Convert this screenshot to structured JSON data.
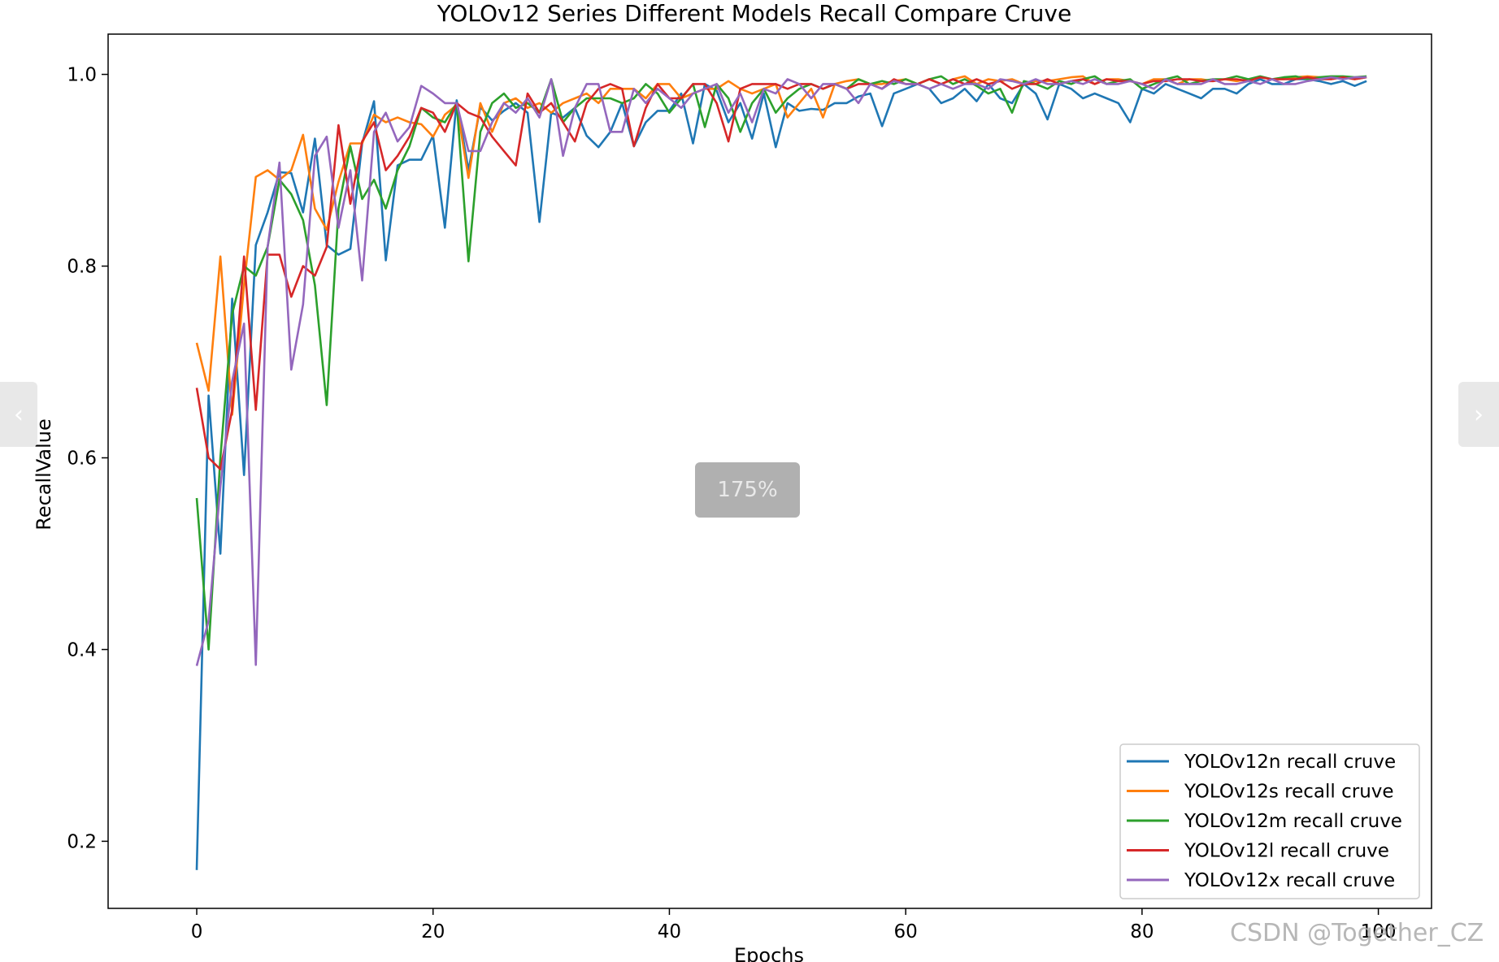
{
  "chart_data": {
    "type": "line",
    "title": "YOLOv12 Series Different Models Recall Compare Cruve",
    "xlabel": "Epochs",
    "ylabel": "RecallValue",
    "xlim": [
      -7.5,
      104.5
    ],
    "ylim": [
      0.13,
      1.042
    ],
    "xticks": [
      0,
      20,
      40,
      60,
      80,
      100
    ],
    "yticks": [
      0.2,
      0.4,
      0.6,
      0.8,
      1.0
    ],
    "grid": false,
    "legend_position": "bottom-right",
    "colors": [
      "#1f77b4",
      "#ff7f0e",
      "#2ca02c",
      "#d62728",
      "#9467bd"
    ],
    "series": [
      {
        "name": "YOLOv12n recall cruve",
        "values": [
          0.17,
          0.665,
          0.5,
          0.766,
          0.582,
          0.822,
          0.856,
          0.898,
          0.897,
          0.856,
          0.933,
          0.822,
          0.812,
          0.818,
          0.928,
          0.972,
          0.806,
          0.905,
          0.911,
          0.911,
          0.936,
          0.84,
          0.973,
          0.9,
          0.966,
          0.952,
          0.962,
          0.97,
          0.96,
          0.846,
          0.96,
          0.955,
          0.965,
          0.936,
          0.924,
          0.94,
          0.97,
          0.925,
          0.95,
          0.962,
          0.962,
          0.98,
          0.928,
          0.99,
          0.983,
          0.95,
          0.97,
          0.933,
          0.98,
          0.924,
          0.97,
          0.962,
          0.964,
          0.963,
          0.97,
          0.97,
          0.977,
          0.98,
          0.946,
          0.98,
          0.985,
          0.99,
          0.985,
          0.97,
          0.975,
          0.985,
          0.972,
          0.99,
          0.975,
          0.97,
          0.99,
          0.98,
          0.953,
          0.99,
          0.985,
          0.975,
          0.98,
          0.975,
          0.97,
          0.95,
          0.985,
          0.98,
          0.99,
          0.985,
          0.98,
          0.975,
          0.985,
          0.985,
          0.98,
          0.99,
          0.995,
          0.99,
          0.99,
          0.995,
          0.995,
          0.993,
          0.99,
          0.993,
          0.988,
          0.993
        ]
      },
      {
        "name": "YOLOv12s recall cruve",
        "values": [
          0.72,
          0.67,
          0.81,
          0.645,
          0.78,
          0.893,
          0.9,
          0.89,
          0.9,
          0.937,
          0.86,
          0.838,
          0.888,
          0.928,
          0.928,
          0.958,
          0.95,
          0.955,
          0.95,
          0.948,
          0.935,
          0.958,
          0.968,
          0.892,
          0.97,
          0.94,
          0.97,
          0.975,
          0.965,
          0.97,
          0.96,
          0.97,
          0.975,
          0.98,
          0.97,
          0.985,
          0.985,
          0.985,
          0.975,
          0.99,
          0.99,
          0.975,
          0.98,
          0.985,
          0.985,
          0.993,
          0.985,
          0.98,
          0.985,
          0.99,
          0.955,
          0.97,
          0.985,
          0.955,
          0.99,
          0.993,
          0.995,
          0.99,
          0.99,
          0.993,
          0.995,
          0.99,
          0.995,
          0.99,
          0.995,
          0.998,
          0.99,
          0.995,
          0.993,
          0.995,
          0.99,
          0.993,
          0.993,
          0.995,
          0.997,
          0.998,
          0.99,
          0.995,
          0.995,
          0.993,
          0.99,
          0.995,
          0.995,
          0.99,
          0.995,
          0.995,
          0.993,
          0.995,
          0.993,
          0.995,
          0.997,
          0.995,
          0.995,
          0.997,
          0.998,
          0.997,
          0.995,
          0.997,
          0.995,
          0.997
        ]
      },
      {
        "name": "YOLOv12m recall cruve",
        "values": [
          0.558,
          0.4,
          0.6,
          0.75,
          0.8,
          0.79,
          0.82,
          0.89,
          0.875,
          0.848,
          0.78,
          0.655,
          0.86,
          0.925,
          0.87,
          0.89,
          0.86,
          0.9,
          0.925,
          0.965,
          0.955,
          0.95,
          0.97,
          0.805,
          0.94,
          0.97,
          0.98,
          0.965,
          0.97,
          0.96,
          0.995,
          0.95,
          0.965,
          0.975,
          0.975,
          0.975,
          0.97,
          0.975,
          0.99,
          0.98,
          0.96,
          0.975,
          0.99,
          0.945,
          0.99,
          0.975,
          0.94,
          0.97,
          0.985,
          0.96,
          0.975,
          0.985,
          0.99,
          0.985,
          0.99,
          0.985,
          0.995,
          0.99,
          0.993,
          0.99,
          0.995,
          0.99,
          0.995,
          0.998,
          0.99,
          0.995,
          0.988,
          0.98,
          0.985,
          0.96,
          0.993,
          0.99,
          0.985,
          0.993,
          0.99,
          0.995,
          0.998,
          0.99,
          0.993,
          0.995,
          0.985,
          0.99,
          0.995,
          0.998,
          0.99,
          0.993,
          0.995,
          0.995,
          0.998,
          0.995,
          0.998,
          0.995,
          0.997,
          0.998,
          0.995,
          0.997,
          0.998,
          0.998,
          0.997,
          0.998
        ]
      },
      {
        "name": "YOLOv12l recall cruve",
        "values": [
          0.673,
          0.6,
          0.588,
          0.65,
          0.81,
          0.65,
          0.812,
          0.812,
          0.768,
          0.8,
          0.79,
          0.82,
          0.947,
          0.865,
          0.93,
          0.95,
          0.9,
          0.915,
          0.935,
          0.965,
          0.96,
          0.94,
          0.97,
          0.96,
          0.955,
          0.935,
          0.92,
          0.905,
          0.98,
          0.96,
          0.97,
          0.95,
          0.93,
          0.97,
          0.985,
          0.99,
          0.985,
          0.925,
          0.965,
          0.99,
          0.975,
          0.975,
          0.99,
          0.99,
          0.97,
          0.93,
          0.985,
          0.99,
          0.99,
          0.99,
          0.985,
          0.99,
          0.99,
          0.985,
          0.99,
          0.985,
          0.99,
          0.99,
          0.985,
          0.995,
          0.99,
          0.99,
          0.995,
          0.99,
          0.995,
          0.99,
          0.995,
          0.99,
          0.993,
          0.985,
          0.99,
          0.99,
          0.995,
          0.99,
          0.993,
          0.995,
          0.99,
          0.995,
          0.993,
          0.993,
          0.99,
          0.993,
          0.993,
          0.995,
          0.995,
          0.993,
          0.993,
          0.995,
          0.995,
          0.993,
          0.997,
          0.995,
          0.995,
          0.995,
          0.997,
          0.995,
          0.995,
          0.997,
          0.995,
          0.997
        ]
      },
      {
        "name": "YOLOv12x recall cruve",
        "values": [
          0.383,
          0.43,
          0.57,
          0.68,
          0.74,
          0.384,
          0.82,
          0.908,
          0.692,
          0.76,
          0.915,
          0.935,
          0.84,
          0.9,
          0.785,
          0.94,
          0.96,
          0.93,
          0.945,
          0.988,
          0.98,
          0.97,
          0.97,
          0.92,
          0.92,
          0.95,
          0.97,
          0.96,
          0.975,
          0.955,
          0.995,
          0.915,
          0.965,
          0.99,
          0.99,
          0.94,
          0.94,
          0.985,
          0.97,
          0.985,
          0.975,
          0.965,
          0.98,
          0.985,
          0.99,
          0.96,
          0.98,
          0.95,
          0.985,
          0.98,
          0.995,
          0.99,
          0.975,
          0.99,
          0.99,
          0.985,
          0.97,
          0.99,
          0.985,
          0.993,
          0.99,
          0.99,
          0.985,
          0.99,
          0.985,
          0.99,
          0.99,
          0.985,
          0.995,
          0.993,
          0.99,
          0.995,
          0.99,
          0.99,
          0.993,
          0.99,
          0.995,
          0.99,
          0.99,
          0.993,
          0.99,
          0.985,
          0.995,
          0.99,
          0.99,
          0.99,
          0.995,
          0.99,
          0.99,
          0.993,
          0.99,
          0.995,
          0.99,
          0.99,
          0.993,
          0.995,
          0.997,
          0.995,
          0.997,
          0.997
        ]
      }
    ]
  },
  "overlay": {
    "zoom_level": "175%",
    "prev_icon": "‹",
    "next_icon": "›",
    "watermark": "CSDN @Together_CZ"
  }
}
